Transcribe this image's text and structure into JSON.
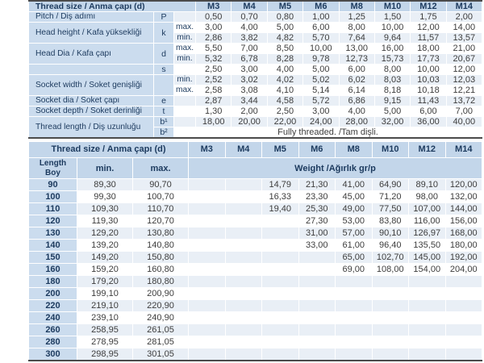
{
  "colors": {
    "header_bg": "#c3d6ea",
    "label_bg": "#cbdcee",
    "stripe_bg": "#e9eff6",
    "heading_text": "#1c3a5e",
    "value_text": "#3d3d3d",
    "rule_dark": "#4b4b4b"
  },
  "columns": [
    "M3",
    "M4",
    "M5",
    "M6",
    "M8",
    "M10",
    "M12",
    "M14"
  ],
  "dimensions_table": {
    "header_label": "Thread size / Anma çapı (d)",
    "rows": [
      {
        "label": "Pitch / Diş adımı",
        "label_span": 1,
        "symbol": "P",
        "symbol_span": 1,
        "qual": "",
        "values": [
          "0,50",
          "0,70",
          "0,80",
          "1,00",
          "1,25",
          "1,50",
          "1,75",
          "2,00"
        ]
      },
      {
        "label": "Head height / Kafa yüksekliği",
        "label_span": 2,
        "symbol": "k",
        "symbol_span": 2,
        "qual": "max.",
        "values": [
          "3,00",
          "4,00",
          "5,00",
          "6,00",
          "8,00",
          "10,00",
          "12,00",
          "14,00"
        ]
      },
      {
        "qual": "min.",
        "values": [
          "2,86",
          "3,82",
          "4,82",
          "5,70",
          "7,64",
          "9,64",
          "11,57",
          "13,57"
        ]
      },
      {
        "label": "Head Dia / Kafa çapı",
        "label_span": 2,
        "symbol": "d",
        "symbol_span": 2,
        "qual": "max.",
        "values": [
          "5,50",
          "7,00",
          "8,50",
          "10,00",
          "13,00",
          "16,00",
          "18,00",
          "21,00"
        ]
      },
      {
        "qual": "min.",
        "values": [
          "5,32",
          "6,78",
          "8,28",
          "9,78",
          "12,73",
          "15,73",
          "17,73",
          "20,67"
        ]
      },
      {
        "label": "",
        "label_span": 1,
        "symbol": "s",
        "symbol_span": 1,
        "qual": "",
        "values": [
          "2,50",
          "3,00",
          "4,00",
          "5,00",
          "6,00",
          "8,00",
          "10,00",
          "12,00"
        ]
      },
      {
        "label": "Socket width / Soket genişliği",
        "label_span": 2,
        "symbol": "",
        "symbol_span": 2,
        "qual": "min.",
        "values": [
          "2,52",
          "3,02",
          "4,02",
          "5,02",
          "6,02",
          "8,03",
          "10,03",
          "12,03"
        ]
      },
      {
        "qual": "max.",
        "values": [
          "2,58",
          "3,08",
          "4,10",
          "5,14",
          "6,14",
          "8,18",
          "10,18",
          "12,21"
        ]
      },
      {
        "label": "Socket dia / Soket çapı",
        "label_span": 1,
        "symbol": "e",
        "symbol_span": 1,
        "qual": "",
        "values": [
          "2,87",
          "3,44",
          "4,58",
          "5,72",
          "6,86",
          "9,15",
          "11,43",
          "13,72"
        ]
      },
      {
        "label": "Socket depth / Soket derinliği",
        "label_span": 1,
        "symbol": "t",
        "symbol_span": 1,
        "qual": "",
        "values": [
          "1,30",
          "2,00",
          "2,50",
          "3,00",
          "4,00",
          "5,00",
          "6,00",
          "7,00"
        ]
      },
      {
        "label": "Thread length / Diş uzunluğu",
        "label_span": 2,
        "symbol": "b¹",
        "symbol_span": 1,
        "qual": "",
        "values": [
          "18,00",
          "20,00",
          "22,00",
          "24,00",
          "28,00",
          "32,00",
          "36,00",
          "40,00"
        ]
      },
      {
        "symbol": "b²",
        "symbol_span": 1,
        "full_text": "Fully threaded. /Tam dişli."
      }
    ]
  },
  "length_table": {
    "header_label": "Thread size / Anma çapı (d)",
    "length_header_line1": "Length",
    "length_header_line2": "Boy",
    "min_header": "min.",
    "max_header": "max.",
    "weight_header": "Weight /Ağırlık gr/p",
    "rows": [
      {
        "length": "90",
        "min": "89,30",
        "max": "90,70",
        "weights": [
          "",
          "",
          "14,79",
          "21,30",
          "41,00",
          "64,90",
          "89,10",
          "120,00"
        ]
      },
      {
        "length": "100",
        "min": "99,30",
        "max": "100,70",
        "weights": [
          "",
          "",
          "16,33",
          "23,30",
          "45,00",
          "71,20",
          "98,00",
          "132,00"
        ]
      },
      {
        "length": "110",
        "min": "109,30",
        "max": "110,70",
        "weights": [
          "",
          "",
          "19,40",
          "25,30",
          "49,00",
          "77,50",
          "107,00",
          "144,00"
        ]
      },
      {
        "length": "120",
        "min": "119,30",
        "max": "120,70",
        "weights": [
          "",
          "",
          "",
          "27,30",
          "53,00",
          "83,80",
          "116,00",
          "156,00"
        ]
      },
      {
        "length": "130",
        "min": "129,20",
        "max": "130,80",
        "weights": [
          "",
          "",
          "",
          "31,00",
          "57,00",
          "90,10",
          "126,97",
          "168,00"
        ]
      },
      {
        "length": "140",
        "min": "139,20",
        "max": "140,80",
        "weights": [
          "",
          "",
          "",
          "33,00",
          "61,00",
          "96,40",
          "135,50",
          "180,00"
        ]
      },
      {
        "length": "150",
        "min": "149,20",
        "max": "150,80",
        "weights": [
          "",
          "",
          "",
          "",
          "65,00",
          "102,70",
          "145,00",
          "192,00"
        ]
      },
      {
        "length": "160",
        "min": "159,20",
        "max": "160,80",
        "weights": [
          "",
          "",
          "",
          "",
          "69,00",
          "108,00",
          "154,00",
          "204,00"
        ]
      },
      {
        "length": "180",
        "min": "179,20",
        "max": "180,80",
        "weights": [
          "",
          "",
          "",
          "",
          "",
          "",
          "",
          ""
        ]
      },
      {
        "length": "200",
        "min": "199,10",
        "max": "200,90",
        "weights": [
          "",
          "",
          "",
          "",
          "",
          "",
          "",
          ""
        ]
      },
      {
        "length": "220",
        "min": "219,10",
        "max": "220,90",
        "weights": [
          "",
          "",
          "",
          "",
          "",
          "",
          "",
          ""
        ]
      },
      {
        "length": "240",
        "min": "239,10",
        "max": "240,90",
        "weights": [
          "",
          "",
          "",
          "",
          "",
          "",
          "",
          ""
        ]
      },
      {
        "length": "260",
        "min": "258,95",
        "max": "261,05",
        "weights": [
          "",
          "",
          "",
          "",
          "",
          "",
          "",
          ""
        ]
      },
      {
        "length": "280",
        "min": "278,95",
        "max": "281,05",
        "weights": [
          "",
          "",
          "",
          "",
          "",
          "",
          "",
          ""
        ]
      },
      {
        "length": "300",
        "min": "298,95",
        "max": "301,05",
        "weights": [
          "",
          "",
          "",
          "",
          "",
          "",
          "",
          ""
        ]
      }
    ]
  }
}
